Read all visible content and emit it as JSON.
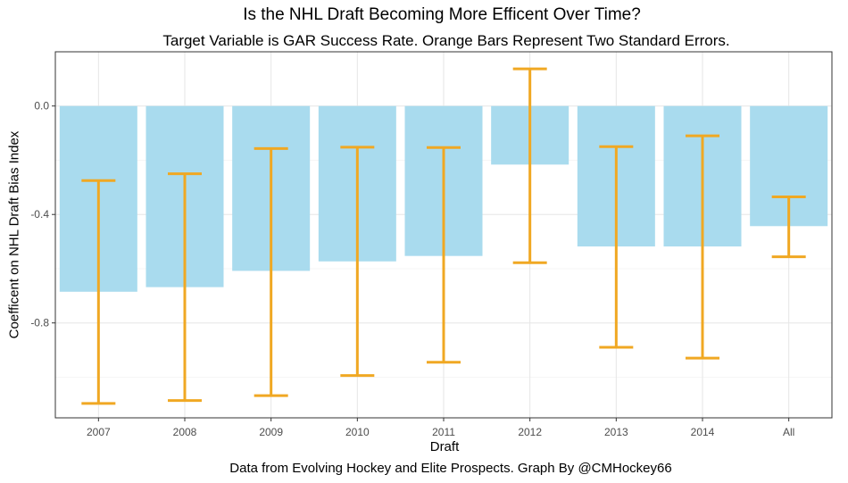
{
  "chart_data": {
    "type": "bar",
    "title": "Is the NHL Draft Becoming More Efficent Over Time?",
    "subtitle": "Target Variable is GAR Success Rate. Orange Bars Represent Two Standard Errors.",
    "xlabel": "Draft",
    "ylabel": "Coefficent on NHL Draft Bias Index",
    "caption": "Data from Evolving Hockey and Elite Prospects. Graph By @CMHockey66",
    "categories": [
      "2007",
      "2008",
      "2009",
      "2010",
      "2011",
      "2012",
      "2013",
      "2014",
      "All"
    ],
    "values": [
      -0.685,
      -0.668,
      -0.608,
      -0.573,
      -0.553,
      -0.216,
      -0.518,
      -0.518,
      -0.443
    ],
    "error_low": [
      -1.097,
      -1.086,
      -1.068,
      -0.994,
      -0.945,
      -0.578,
      -0.89,
      -0.93,
      -0.556
    ],
    "error_high": [
      -0.275,
      -0.25,
      -0.157,
      -0.152,
      -0.153,
      0.137,
      -0.15,
      -0.11,
      -0.335
    ],
    "ylim": [
      -1.15,
      0.2
    ],
    "yticks": [
      0.0,
      -0.4,
      -0.8
    ],
    "ytick_labels": [
      "0.0",
      "-0.4",
      "-0.8"
    ],
    "grid": true,
    "bar_color": "#A9DBEE",
    "error_color": "#F0A823"
  }
}
